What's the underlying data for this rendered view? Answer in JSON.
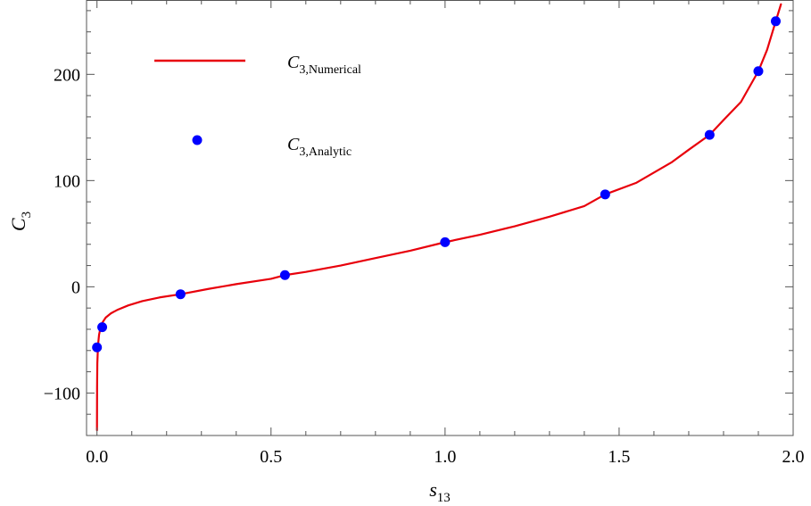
{
  "chart_data": {
    "type": "line",
    "xlabel": {
      "main": "s",
      "sub": "13"
    },
    "ylabel": {
      "main": "C",
      "sub": "3"
    },
    "xlim": [
      -0.03,
      2.0
    ],
    "ylim": [
      -140,
      270
    ],
    "x_ticks": [
      {
        "value": 0.0,
        "label": "0.0"
      },
      {
        "value": 0.5,
        "label": "0.5"
      },
      {
        "value": 1.0,
        "label": "1.0"
      },
      {
        "value": 1.5,
        "label": "1.5"
      },
      {
        "value": 2.0,
        "label": "2.0"
      }
    ],
    "y_ticks": [
      {
        "value": -100,
        "label": "−100"
      },
      {
        "value": 0,
        "label": "0"
      },
      {
        "value": 100,
        "label": "100"
      },
      {
        "value": 200,
        "label": "200"
      }
    ],
    "grid": false,
    "legend_placement": "top-left",
    "series": [
      {
        "key": "numerical",
        "name_main": "C",
        "name_sub": "3,Numerical",
        "style": "line",
        "color": "#e8000b",
        "x": [
          0.0,
          0.0003,
          0.001,
          0.003,
          0.006,
          0.01,
          0.015,
          0.025,
          0.04,
          0.06,
          0.09,
          0.13,
          0.18,
          0.24,
          0.32,
          0.4,
          0.5,
          0.54,
          0.6,
          0.7,
          0.8,
          0.9,
          1.0,
          1.1,
          1.2,
          1.3,
          1.4,
          1.46,
          1.55,
          1.65,
          1.7,
          1.76,
          1.8,
          1.85,
          1.9,
          1.925,
          1.95,
          1.965
        ],
        "y": [
          -135,
          -95,
          -72,
          -55,
          -45,
          -39,
          -34,
          -29,
          -25,
          -21.5,
          -17.5,
          -13.5,
          -10,
          -7,
          -2,
          2.5,
          7.5,
          11,
          14,
          20,
          27,
          34,
          42,
          49,
          57,
          66,
          76,
          87,
          98,
          117,
          129,
          143,
          157,
          174,
          203,
          223,
          250,
          266
        ]
      },
      {
        "key": "analytic",
        "name_main": "C",
        "name_sub": "3,Analytic",
        "style": "scatter",
        "color": "#0000ff",
        "x": [
          0.0,
          0.015,
          0.24,
          0.54,
          1.0,
          1.46,
          1.76,
          1.9,
          1.95
        ],
        "y": [
          -57,
          -38,
          -7,
          11,
          42,
          87,
          143,
          203,
          250
        ]
      }
    ]
  }
}
